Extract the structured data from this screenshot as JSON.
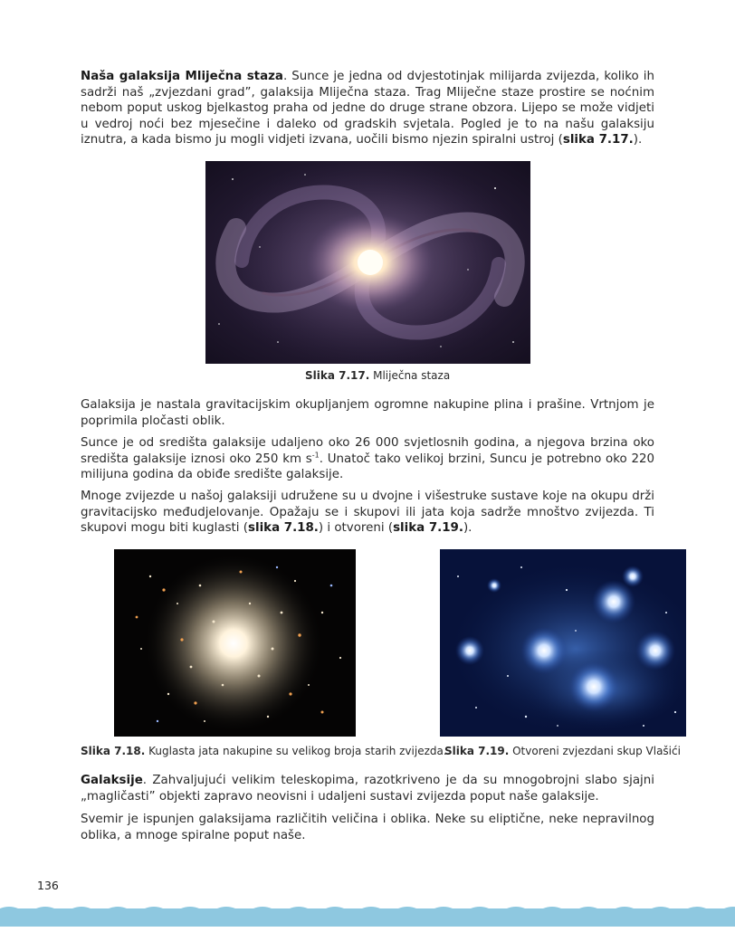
{
  "page": {
    "number": "136",
    "accent_color": "#8ec8e0"
  },
  "para1": {
    "term": "Naša galaksija Mliječna staza",
    "text_a": ". Sunce je jedna od dvjestotinjak milijarda zvijezda, koliko ih sadrži naš „zvjezdani grad”, galaksija Mliječna staza. Trag Mliječne staze prostire se noćnim nebom poput uskog bjelkastog praha od jedne do druge strane obzora. Lijepo se može vidjeti u vedroj noći bez mjesečine i daleko od gradskih svjetala. Pogled je to na našu galaksiju iznutra, a kada bismo ju mogli vidjeti izvana, uočili bismo njezin spiralni ustroj (",
    "ref": "slika 7.17.",
    "text_b": ")."
  },
  "figure_717": {
    "label": "Slika 7.17.",
    "caption": " Mliječna staza"
  },
  "para2": {
    "text": "Galaksija je nastala gravitacijskim okupljanjem ogromne nakupine plina i prašine. Vrtnjom je poprimila pločasti oblik."
  },
  "para3": {
    "text_a": "Sunce je od središta galaksije udaljeno oko 26 000 svjetlosnih godina, a njegova brzina oko središta galaksije iznosi oko 250 km s",
    "sup": "-1",
    "text_b": ". Unatoč tako velikoj brzini, Suncu je potrebno oko 220 milijuna godina da obiđe središte galaksije."
  },
  "para4": {
    "text_a": "Mnoge zvijezde u našoj galaksiji udružene su u dvojne i višestruke sustave koje na okupu drži gravitacijsko međudjelovanje. Opažaju se i skupovi ili jata koja sadrže mnoštvo zvijezda. Ti skupovi mogu biti kuglasti (",
    "ref1": "slika 7.18.",
    "text_b": ") i otvoreni (",
    "ref2": "slika 7.19.",
    "text_c": ")."
  },
  "figure_718": {
    "label": "Slika 7.18.",
    "caption": " Kuglasta jata nakupine su velikog broja starih zvijezda."
  },
  "figure_719": {
    "label": "Slika 7.19.",
    "caption": " Otvoreni zvjezdani skup Vlašići"
  },
  "para5": {
    "term": "Galaksije",
    "text": ". Zahvaljujući velikim teleskopima, razotkriveno je da su mnogobrojni slabo sjajni „magličasti” objekti zapravo neovisni i udaljeni sustavi zvijezda poput naše galaksije."
  },
  "para6": {
    "text": "Svemir je ispunjen galaksijama različitih veličina i oblika. Neke su eliptične, neke nepravilnog oblika, a mnoge spiralne poput naše."
  }
}
